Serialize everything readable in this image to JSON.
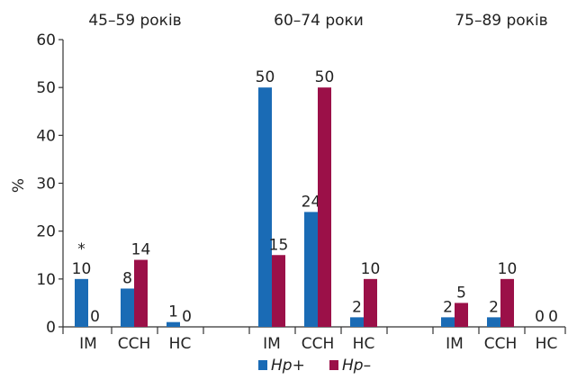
{
  "chart_data": {
    "type": "bar",
    "ylabel": "%",
    "ylim": [
      0,
      60
    ],
    "yticks": [
      0,
      10,
      20,
      30,
      40,
      50,
      60
    ],
    "legend_position": "bottom",
    "groups": [
      {
        "title": "45–59 років",
        "categories": [
          "IM",
          "CCH",
          "HC"
        ],
        "series": [
          {
            "name": "Hp+",
            "values": [
              10,
              8,
              1
            ]
          },
          {
            "name": "Hp–",
            "values": [
              0,
              14,
              0
            ]
          }
        ],
        "annotation": "*"
      },
      {
        "title": "60–74 роки",
        "categories": [
          "IM",
          "CCH",
          "HC"
        ],
        "series": [
          {
            "name": "Hp+",
            "values": [
              50,
              24,
              2
            ]
          },
          {
            "name": "Hp–",
            "values": [
              15,
              50,
              10
            ]
          }
        ]
      },
      {
        "title": "75–89 років",
        "categories": [
          "IM",
          "CCH",
          "HC"
        ],
        "series": [
          {
            "name": "Hp+",
            "values": [
              2,
              2,
              0
            ]
          },
          {
            "name": "Hp–",
            "values": [
              5,
              10,
              0
            ]
          }
        ]
      }
    ],
    "colors": {
      "Hp+": "#1a6bb5",
      "Hp–": "#9b1048"
    }
  }
}
